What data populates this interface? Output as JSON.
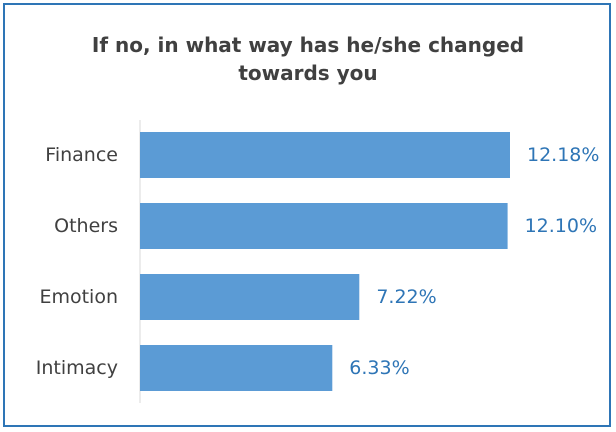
{
  "chart_data": {
    "type": "bar",
    "orientation": "horizontal",
    "title": "If no, in what way has he/she changed\ntowards you",
    "categories": [
      "Finance",
      "Others",
      "Emotion",
      "Intimacy"
    ],
    "values": [
      12.18,
      12.1,
      7.22,
      6.33
    ],
    "value_labels": [
      "12.18%",
      "12.10%",
      "7.22%",
      "6.33%"
    ],
    "grid": false,
    "legend": "none",
    "xlabel": "",
    "ylabel": ""
  },
  "colors": {
    "bar": "#5b9bd5",
    "value_label": "#2e75b6",
    "border": "#2e75b6",
    "text": "#404040"
  }
}
